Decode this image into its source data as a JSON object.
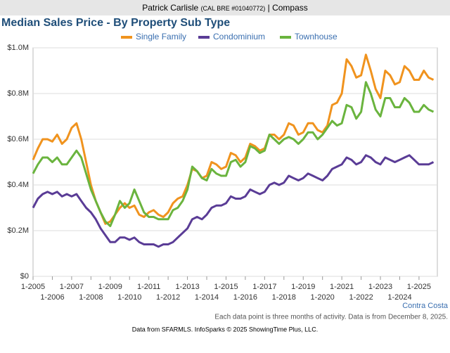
{
  "header": {
    "name": "Patrick Carlisle",
    "license": "(CAL BRE #01040772)",
    "company": "| Compass"
  },
  "chart_data": {
    "type": "line",
    "title": "Median Sales Price - By Property Sub Type",
    "x": [
      2005,
      2005.25,
      2005.5,
      2005.75,
      2006,
      2006.25,
      2006.5,
      2006.75,
      2007,
      2007.25,
      2007.5,
      2007.75,
      2008,
      2008.25,
      2008.5,
      2008.75,
      2009,
      2009.25,
      2009.5,
      2009.75,
      2010,
      2010.25,
      2010.5,
      2010.75,
      2011,
      2011.25,
      2011.5,
      2011.75,
      2012,
      2012.25,
      2012.5,
      2012.75,
      2013,
      2013.25,
      2013.5,
      2013.75,
      2014,
      2014.25,
      2014.5,
      2014.75,
      2015,
      2015.25,
      2015.5,
      2015.75,
      2016,
      2016.25,
      2016.5,
      2016.75,
      2017,
      2017.25,
      2017.5,
      2017.75,
      2018,
      2018.25,
      2018.5,
      2018.75,
      2019,
      2019.25,
      2019.5,
      2019.75,
      2020,
      2020.25,
      2020.5,
      2020.75,
      2021,
      2021.25,
      2021.5,
      2021.75,
      2022,
      2022.25,
      2022.5,
      2022.75,
      2023,
      2023.25,
      2023.5,
      2023.75,
      2024,
      2024.25,
      2024.5,
      2024.75,
      2025,
      2025.25,
      2025.5,
      2025.75
    ],
    "series": [
      {
        "name": "Single Family",
        "color": "#f0931e",
        "values": [
          0.51,
          0.56,
          0.6,
          0.6,
          0.59,
          0.62,
          0.58,
          0.6,
          0.65,
          0.67,
          0.6,
          0.5,
          0.4,
          0.33,
          0.28,
          0.23,
          0.24,
          0.27,
          0.3,
          0.32,
          0.3,
          0.31,
          0.27,
          0.26,
          0.28,
          0.29,
          0.27,
          0.26,
          0.28,
          0.32,
          0.34,
          0.35,
          0.4,
          0.47,
          0.46,
          0.43,
          0.44,
          0.5,
          0.49,
          0.47,
          0.48,
          0.54,
          0.53,
          0.5,
          0.52,
          0.58,
          0.57,
          0.55,
          0.56,
          0.62,
          0.62,
          0.6,
          0.62,
          0.67,
          0.66,
          0.62,
          0.63,
          0.67,
          0.67,
          0.64,
          0.63,
          0.66,
          0.75,
          0.76,
          0.8,
          0.95,
          0.92,
          0.87,
          0.88,
          0.97,
          0.9,
          0.82,
          0.78,
          0.9,
          0.88,
          0.84,
          0.85,
          0.92,
          0.9,
          0.86,
          0.86,
          0.9,
          0.87,
          0.86
        ]
      },
      {
        "name": "Condominium",
        "color": "#5a3c96",
        "values": [
          0.3,
          0.34,
          0.36,
          0.37,
          0.36,
          0.37,
          0.35,
          0.36,
          0.35,
          0.36,
          0.33,
          0.3,
          0.28,
          0.25,
          0.21,
          0.18,
          0.15,
          0.15,
          0.17,
          0.17,
          0.16,
          0.17,
          0.15,
          0.14,
          0.14,
          0.14,
          0.13,
          0.14,
          0.14,
          0.15,
          0.17,
          0.19,
          0.21,
          0.25,
          0.26,
          0.25,
          0.27,
          0.3,
          0.31,
          0.31,
          0.32,
          0.35,
          0.34,
          0.34,
          0.35,
          0.38,
          0.37,
          0.36,
          0.37,
          0.4,
          0.41,
          0.4,
          0.41,
          0.44,
          0.43,
          0.42,
          0.43,
          0.45,
          0.44,
          0.43,
          0.42,
          0.44,
          0.47,
          0.48,
          0.49,
          0.52,
          0.51,
          0.49,
          0.5,
          0.53,
          0.52,
          0.5,
          0.49,
          0.52,
          0.51,
          0.5,
          0.51,
          0.52,
          0.53,
          0.51,
          0.49,
          0.49,
          0.49,
          0.5
        ]
      },
      {
        "name": "Townhouse",
        "color": "#6ab43e",
        "values": [
          0.45,
          0.49,
          0.52,
          0.52,
          0.5,
          0.52,
          0.49,
          0.49,
          0.52,
          0.55,
          0.52,
          0.45,
          0.38,
          0.33,
          0.28,
          0.24,
          0.22,
          0.27,
          0.33,
          0.3,
          0.32,
          0.38,
          0.33,
          0.28,
          0.26,
          0.26,
          0.25,
          0.25,
          0.25,
          0.29,
          0.3,
          0.33,
          0.38,
          0.48,
          0.46,
          0.43,
          0.42,
          0.47,
          0.45,
          0.44,
          0.44,
          0.5,
          0.51,
          0.48,
          0.5,
          0.57,
          0.56,
          0.54,
          0.55,
          0.62,
          0.6,
          0.58,
          0.6,
          0.61,
          0.6,
          0.58,
          0.6,
          0.63,
          0.63,
          0.6,
          0.62,
          0.65,
          0.68,
          0.66,
          0.67,
          0.75,
          0.74,
          0.69,
          0.72,
          0.85,
          0.8,
          0.73,
          0.7,
          0.78,
          0.78,
          0.74,
          0.74,
          0.78,
          0.76,
          0.72,
          0.72,
          0.75,
          0.73,
          0.72
        ]
      }
    ],
    "xlim": [
      2005,
      2025.95
    ],
    "xticks": [
      {
        "value": 2005,
        "label": "1-2005"
      },
      {
        "value": 2006,
        "label": "1-2006"
      },
      {
        "value": 2007,
        "label": "1-2007"
      },
      {
        "value": 2008,
        "label": "1-2008"
      },
      {
        "value": 2009,
        "label": "1-2009"
      },
      {
        "value": 2010,
        "label": "1-2010"
      },
      {
        "value": 2011,
        "label": "1-2011"
      },
      {
        "value": 2012,
        "label": "1-2012"
      },
      {
        "value": 2013,
        "label": "1-2013"
      },
      {
        "value": 2014,
        "label": "1-2014"
      },
      {
        "value": 2015,
        "label": "1-2015"
      },
      {
        "value": 2016,
        "label": "1-2016"
      },
      {
        "value": 2017,
        "label": "1-2017"
      },
      {
        "value": 2018,
        "label": "1-2018"
      },
      {
        "value": 2019,
        "label": "1-2019"
      },
      {
        "value": 2020,
        "label": "1-2020"
      },
      {
        "value": 2021,
        "label": "1-2021"
      },
      {
        "value": 2022,
        "label": "1-2022"
      },
      {
        "value": 2023,
        "label": "1-2023"
      },
      {
        "value": 2024,
        "label": "1-2024"
      },
      {
        "value": 2025,
        "label": "1-2025"
      }
    ],
    "ylim": [
      0,
      1.0
    ],
    "yticks": [
      {
        "value": 0,
        "label": "$0"
      },
      {
        "value": 0.2,
        "label": "$0.2M"
      },
      {
        "value": 0.4,
        "label": "$0.4M"
      },
      {
        "value": 0.6,
        "label": "$0.6M"
      },
      {
        "value": 0.8,
        "label": "$0.8M"
      },
      {
        "value": 1.0,
        "label": "$1.0M"
      }
    ],
    "grid": true,
    "region": "Contra Costa",
    "note": "Each data point is three months of activity. Data is from December 8, 2025.",
    "source": "Data from SFARMLS. InfoSparks © 2025 ShowingTime Plus, LLC."
  }
}
